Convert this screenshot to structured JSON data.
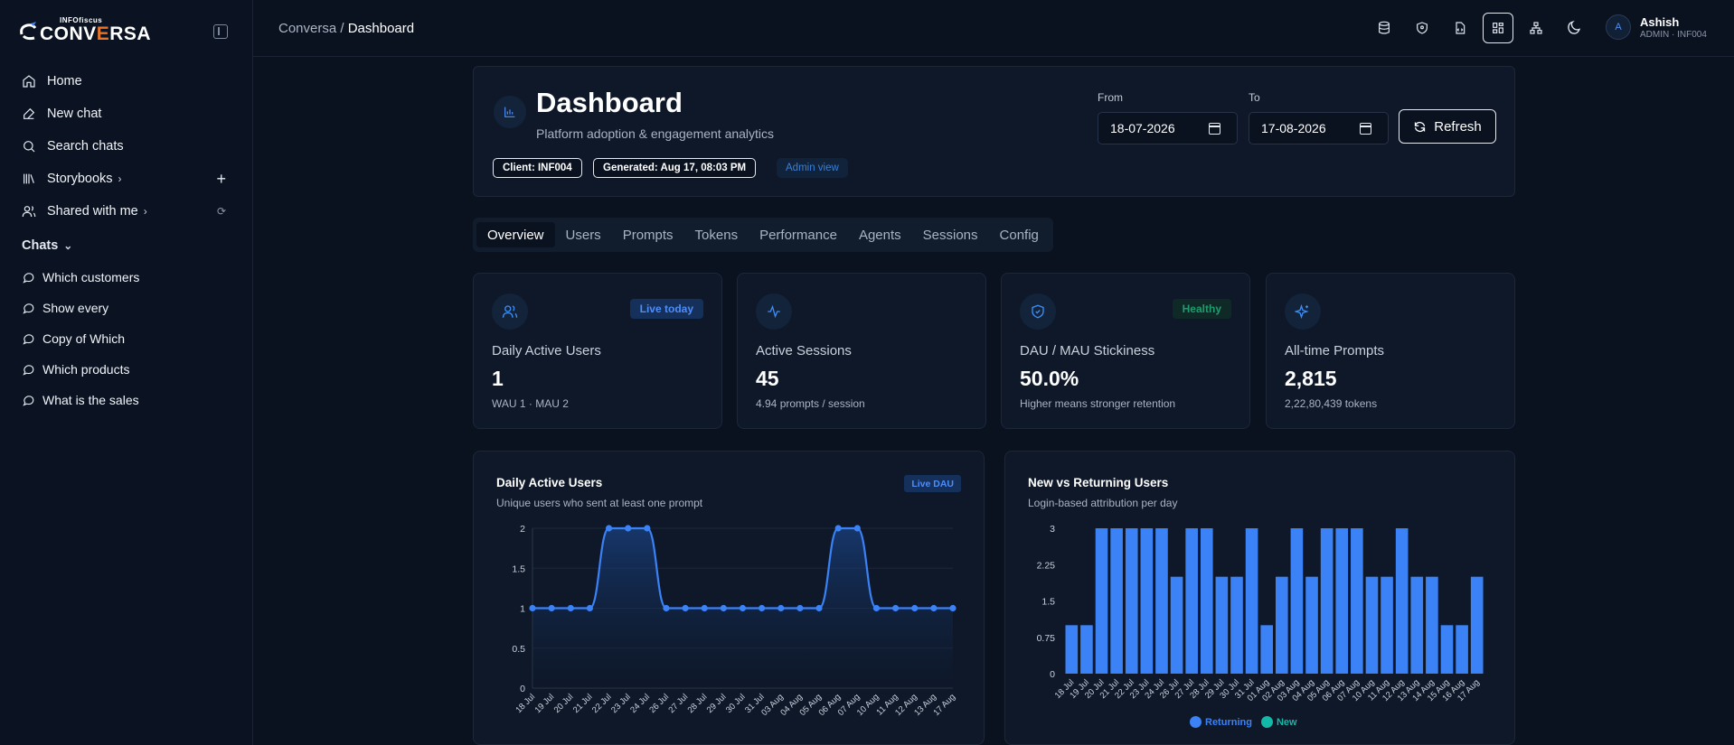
{
  "brand": {
    "small": "INFOfiscus",
    "big_pre": "CONV",
    "big_accent": "E",
    "big_post": "RSA"
  },
  "sidebar": {
    "nav": [
      {
        "label": "Home",
        "icon": "home-icon"
      },
      {
        "label": "New chat",
        "icon": "edit-icon"
      },
      {
        "label": "Search chats",
        "icon": "search-icon"
      },
      {
        "label": "Storybooks",
        "icon": "library-icon"
      },
      {
        "label": "Shared with me",
        "icon": "users-icon"
      }
    ],
    "chats_heading": "Chats",
    "chats": [
      "Which customers",
      "Show every",
      "Copy of Which",
      "Which products",
      "What is the sales"
    ]
  },
  "topbar": {
    "breadcrumb_root": "Conversa",
    "breadcrumb_sep": "/",
    "breadcrumb_current": "Dashboard",
    "user_initial": "A",
    "user_name": "Ashish",
    "user_role": "ADMIN · INF004"
  },
  "header": {
    "title": "Dashboard",
    "subtitle": "Platform adoption & engagement analytics",
    "client_pill": "Client: INF004",
    "generated_pill": "Generated: Aug 17, 08:03 PM",
    "admin_pill": "Admin view",
    "from_label": "From",
    "from_value": "18-07-2026",
    "to_label": "To",
    "to_value": "17-08-2026",
    "refresh_label": "Refresh"
  },
  "tabs": [
    "Overview",
    "Users",
    "Prompts",
    "Tokens",
    "Performance",
    "Agents",
    "Sessions",
    "Config"
  ],
  "stats": [
    {
      "label": "Daily Active Users",
      "value": "1",
      "sub": "WAU 1 · MAU 2",
      "badge": "Live today"
    },
    {
      "label": "Active Sessions",
      "value": "45",
      "sub": "4.94 prompts / session",
      "badge": ""
    },
    {
      "label": "DAU / MAU Stickiness",
      "value": "50.0%",
      "sub": "Higher means stronger retention",
      "badge": "Healthy"
    },
    {
      "label": "All-time Prompts",
      "value": "2,815",
      "sub": "2,22,80,439 tokens",
      "badge": ""
    }
  ],
  "colors": {
    "accent": "#3b82f6",
    "new": "#14b8a6",
    "healthy": "#1e9c6e"
  },
  "chart_data": [
    {
      "type": "area",
      "title": "Daily Active Users",
      "subtitle": "Unique users who sent at least one prompt",
      "badge": "Live DAU",
      "x": [
        "18 Jul",
        "19 Jul",
        "20 Jul",
        "21 Jul",
        "22 Jul",
        "23 Jul",
        "24 Jul",
        "26 Jul",
        "27 Jul",
        "28 Jul",
        "29 Jul",
        "30 Jul",
        "31 Jul",
        "03 Aug",
        "04 Aug",
        "05 Aug",
        "06 Aug",
        "07 Aug",
        "10 Aug",
        "11 Aug",
        "12 Aug",
        "13 Aug",
        "17 Aug"
      ],
      "values": [
        1,
        1,
        1,
        1,
        2,
        2,
        2,
        1,
        1,
        1,
        1,
        1,
        1,
        1,
        1,
        1,
        2,
        2,
        1,
        1,
        1,
        1,
        1
      ],
      "yticks": [
        "0",
        "0.5",
        "1",
        "1.5",
        "2"
      ],
      "ylim": [
        0,
        2
      ],
      "grid": true
    },
    {
      "type": "bar",
      "title": "New vs Returning Users",
      "subtitle": "Login-based attribution per day",
      "x": [
        "18 Jul",
        "19 Jul",
        "20 Jul",
        "21 Jul",
        "22 Jul",
        "23 Jul",
        "24 Jul",
        "26 Jul",
        "27 Jul",
        "28 Jul",
        "29 Jul",
        "30 Jul",
        "31 Jul",
        "01 Aug",
        "02 Aug",
        "03 Aug",
        "04 Aug",
        "05 Aug",
        "06 Aug",
        "07 Aug",
        "10 Aug",
        "11 Aug",
        "12 Aug",
        "13 Aug",
        "14 Aug",
        "15 Aug",
        "16 Aug",
        "17 Aug"
      ],
      "series": [
        {
          "name": "Returning",
          "values": [
            1,
            1,
            3,
            3,
            3,
            3,
            3,
            2,
            3,
            3,
            2,
            2,
            3,
            1,
            2,
            3,
            2,
            3,
            3,
            3,
            2,
            2,
            3,
            2,
            2,
            1,
            1,
            2
          ]
        },
        {
          "name": "New",
          "values": [
            0,
            0,
            0,
            0,
            0,
            0,
            0,
            0,
            0,
            0,
            0,
            0,
            0,
            0,
            0,
            0,
            0,
            0,
            0,
            0,
            0,
            0,
            0,
            0,
            0,
            0,
            0,
            0
          ]
        }
      ],
      "yticks": [
        "0",
        "0.75",
        "1.5",
        "2.25",
        "3"
      ],
      "ylim": [
        0,
        3
      ],
      "legend": "bottom",
      "grid": false
    }
  ]
}
